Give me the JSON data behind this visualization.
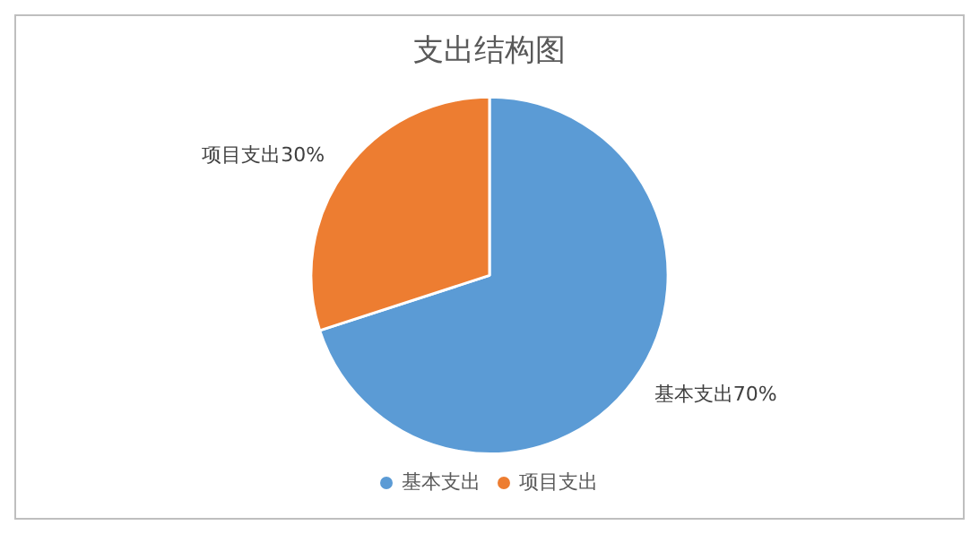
{
  "chart_data": {
    "type": "pie",
    "title": "支出结构图",
    "categories": [
      "基本支出",
      "项目支出"
    ],
    "values": [
      70,
      30
    ],
    "colors": [
      "#5b9bd5",
      "#ed7d31"
    ],
    "value_labels": [
      "基本支出70%",
      "项目支出30%"
    ],
    "legend": "bottom"
  }
}
